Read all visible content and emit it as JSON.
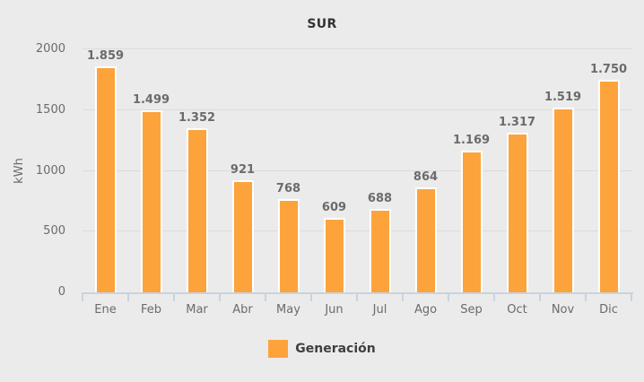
{
  "chart_data": {
    "type": "bar",
    "title": "SUR",
    "ylabel": "kWh",
    "categories": [
      "Ene",
      "Feb",
      "Mar",
      "Abr",
      "May",
      "Jun",
      "Jul",
      "Ago",
      "Sep",
      "Oct",
      "Nov",
      "Dic"
    ],
    "series": [
      {
        "name": "Generación",
        "color": "#FDA33C",
        "values": [
          1859,
          1499,
          1352,
          921,
          768,
          609,
          688,
          864,
          1169,
          1317,
          1519,
          1750
        ],
        "value_labels": [
          "1.859",
          "1.499",
          "1.352",
          "921",
          "768",
          "609",
          "688",
          "864",
          "1.169",
          "1.317",
          "1.519",
          "1.750"
        ]
      }
    ],
    "ylim": [
      0,
      2000
    ],
    "yticks": [
      0,
      500,
      1000,
      1500,
      2000
    ],
    "ytick_labels": [
      "0",
      "500",
      "1000",
      "1500",
      "2000"
    ],
    "grid": true,
    "legend_position": "bottom",
    "colors": {
      "background": "#EBEBEB",
      "bar": "#FDA33C",
      "bar_border": "#FFFFFF",
      "gridline": "#DBDBDB",
      "axis_line": "#C9D3DE",
      "label_text": "#6B6B6B",
      "title_text": "#333333",
      "legend_text": "#3F3F3F"
    }
  }
}
